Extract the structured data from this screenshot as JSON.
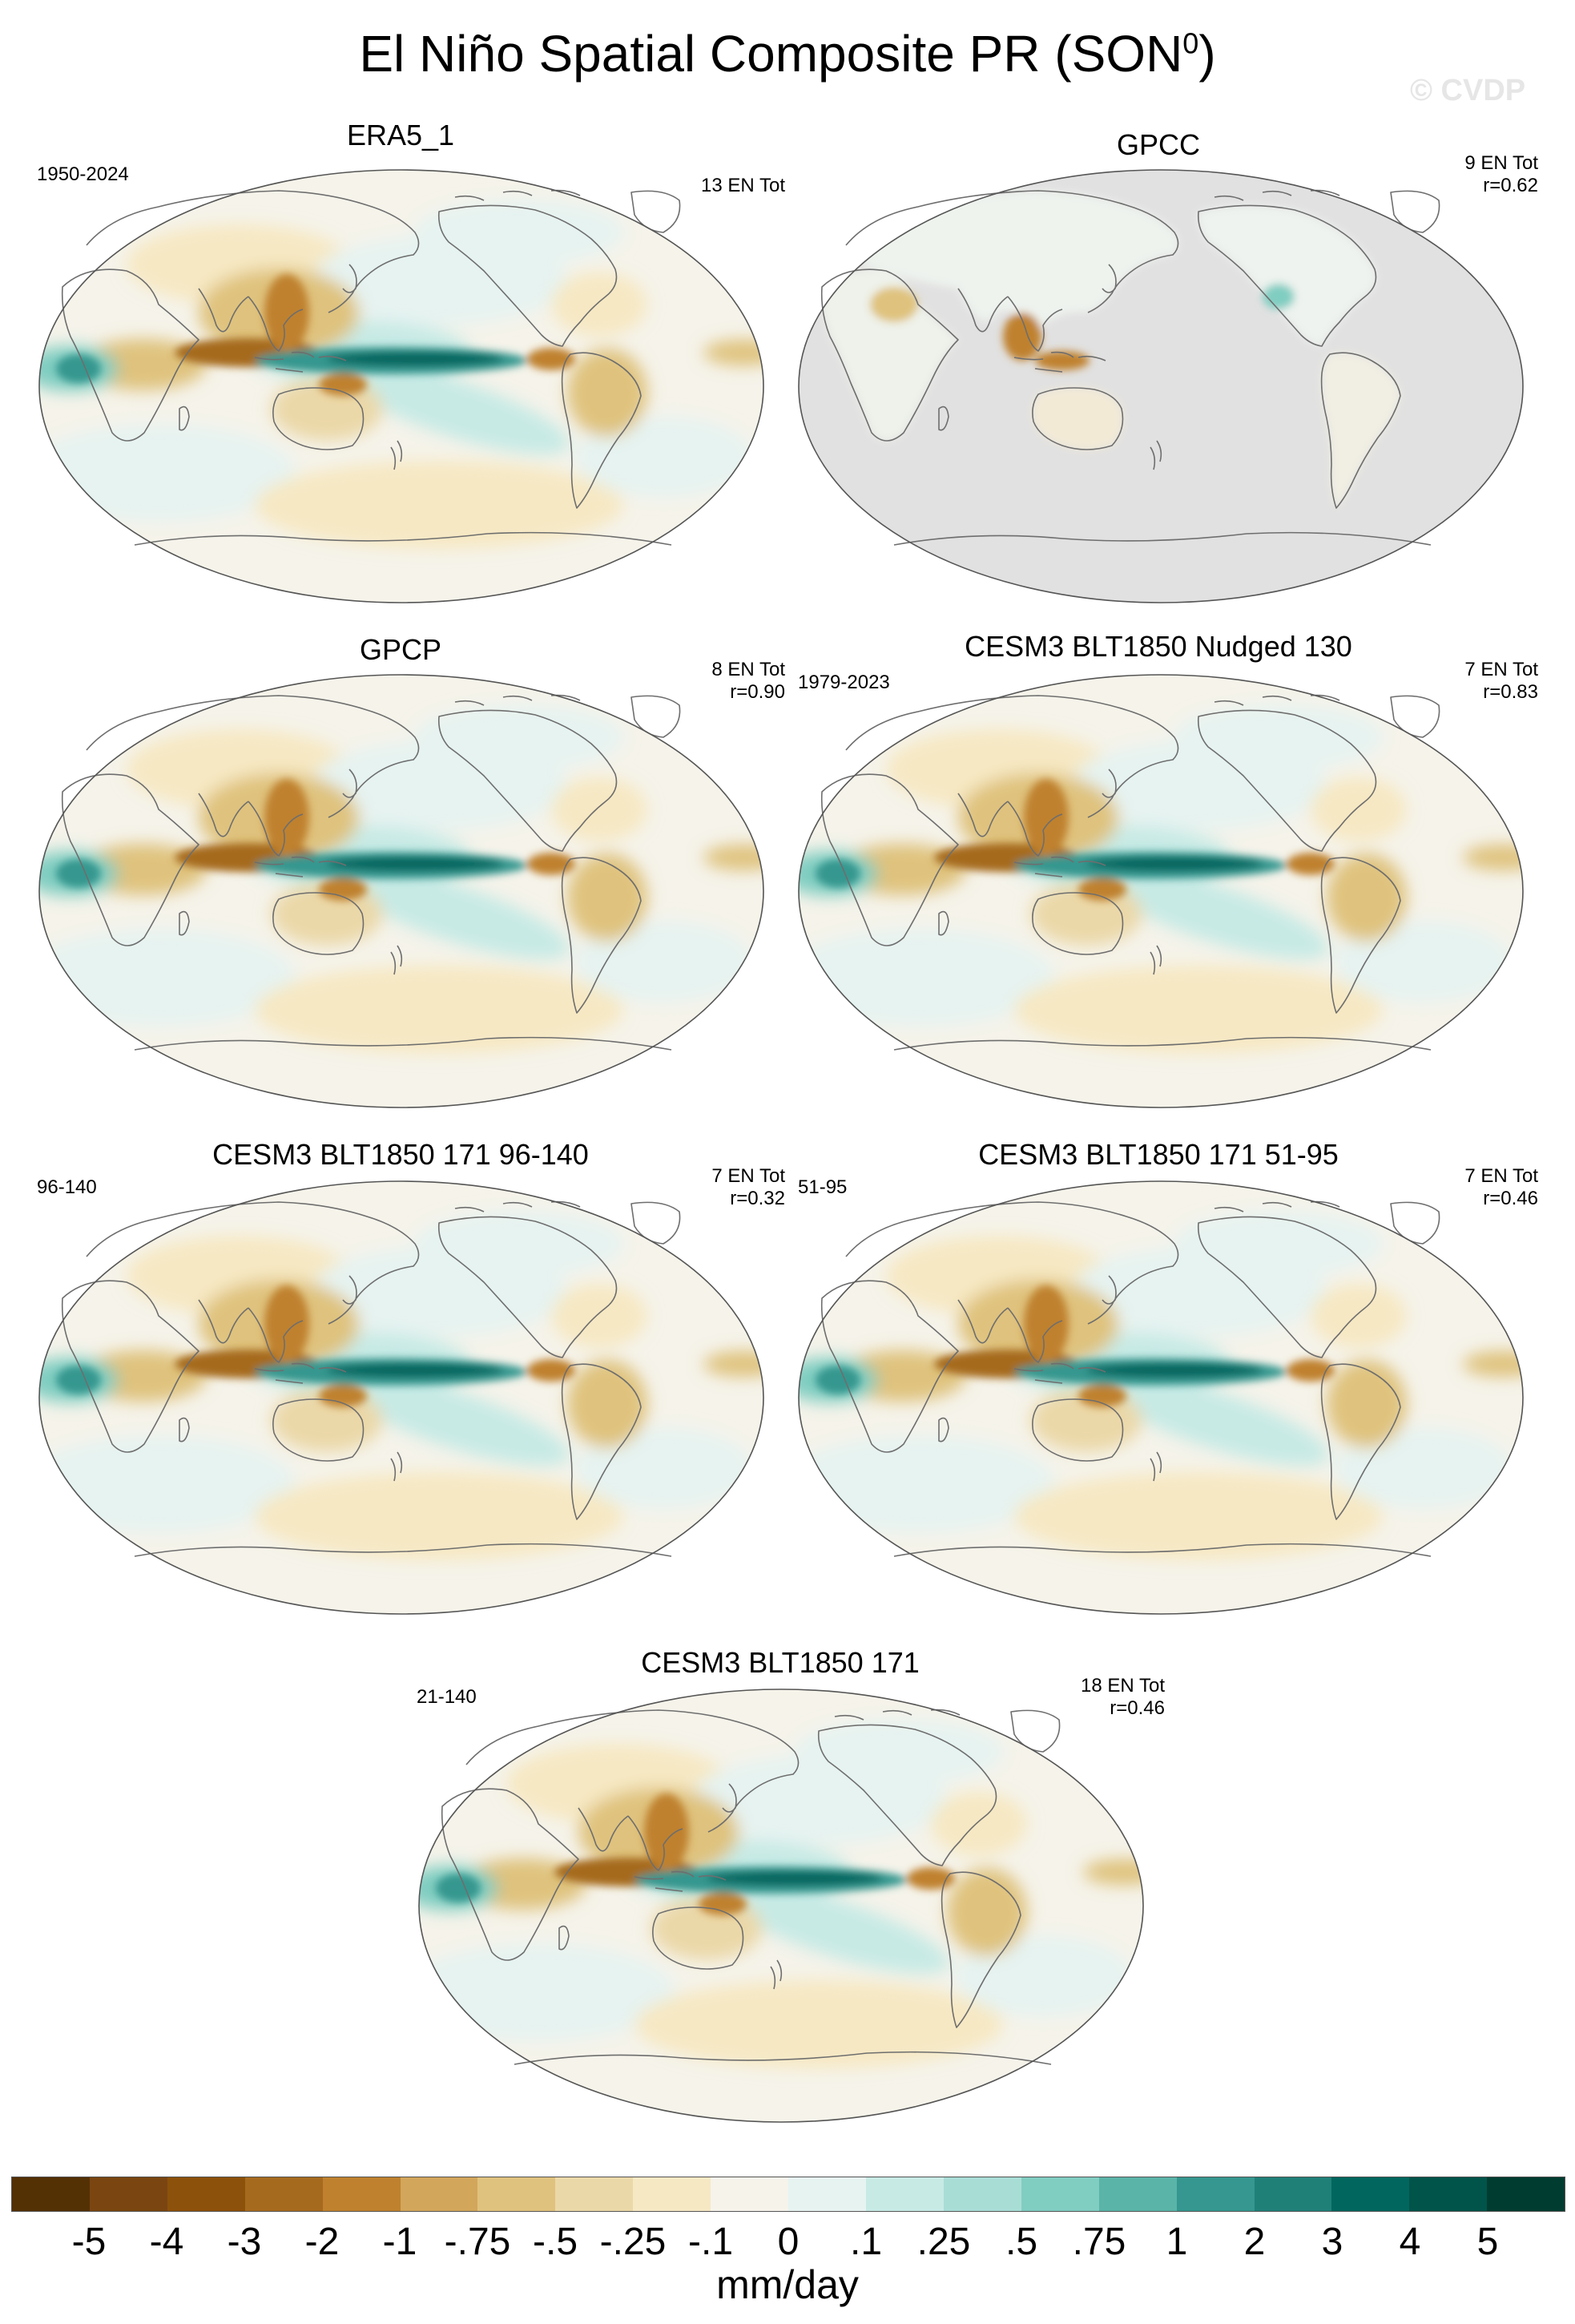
{
  "title": "El Niño Spatial Composite PR (SON",
  "title_sup": "0",
  "title_close": ")",
  "watermark": "© CVDP",
  "panels": [
    {
      "title": "ERA5_1",
      "left": "1950-2024",
      "right1": "13 EN Tot",
      "right2": "",
      "ocean_masked": false
    },
    {
      "title": "GPCC",
      "left": "",
      "right1": "9 EN Tot",
      "right2": "r=0.62",
      "ocean_masked": true
    },
    {
      "title": "GPCP",
      "left": "",
      "right1": "8 EN Tot",
      "right2": "r=0.90",
      "ocean_masked": false
    },
    {
      "title": "CESM3 BLT1850 Nudged 130",
      "left": "1979-2023",
      "right1": "7 EN Tot",
      "right2": "r=0.83",
      "ocean_masked": false
    },
    {
      "title": "CESM3 BLT1850 171 96-140",
      "left": "96-140",
      "right1": "7 EN Tot",
      "right2": "r=0.32",
      "ocean_masked": false
    },
    {
      "title": "CESM3 BLT1850 171 51-95",
      "left": "51-95",
      "right1": "7 EN Tot",
      "right2": "r=0.46",
      "ocean_masked": false
    },
    {
      "title": "CESM3 BLT1850 171",
      "left": "21-140",
      "right1": "18 EN Tot",
      "right2": "r=0.46",
      "ocean_masked": false
    }
  ],
  "colorbar": {
    "units": "mm/day",
    "colors": [
      "#543005",
      "#7a4510",
      "#8c510a",
      "#a66a1e",
      "#bf812d",
      "#d2a65b",
      "#dfc27d",
      "#ebd8a8",
      "#f6e8c3",
      "#f5f3ea",
      "#e6f3f1",
      "#c7eae5",
      "#a8ddd6",
      "#80cdc1",
      "#5ab4a8",
      "#35978f",
      "#1f8078",
      "#01665e",
      "#01544a",
      "#003c30"
    ],
    "labels": [
      "-5",
      "-4",
      "-3",
      "-2",
      "-1",
      "-.75",
      "-.5",
      "-.25",
      "-.1",
      "0",
      ".1",
      ".25",
      ".5",
      ".75",
      "1",
      "2",
      "3",
      "4",
      "5"
    ]
  }
}
